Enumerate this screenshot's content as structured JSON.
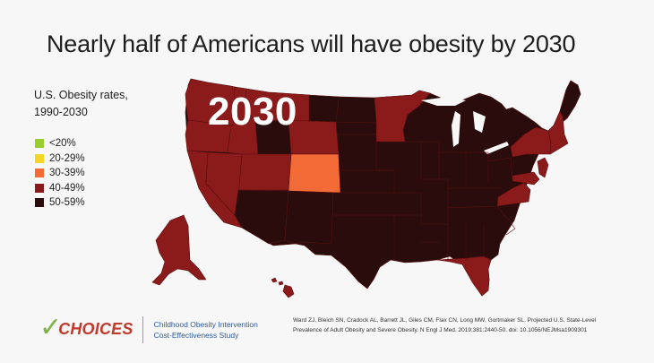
{
  "title": "Nearly half of Americans will have obesity by 2030",
  "subtitle_line1": "U.S. Obesity rates,",
  "subtitle_line2": "1990-2030",
  "year_label": "2030",
  "legend": [
    {
      "label": "<20%",
      "color": "#9acd32"
    },
    {
      "label": "20-29%",
      "color": "#f5d327"
    },
    {
      "label": "30-39%",
      "color": "#f26a35"
    },
    {
      "label": "40-49%",
      "color": "#8b1a1a"
    },
    {
      "label": "50-59%",
      "color": "#2a0c0c"
    }
  ],
  "logo": {
    "check": "✓",
    "word": "CHOICES",
    "tag_line1": "Childhood Obesity Intervention",
    "tag_line2": "Cost-Effectiveness Study"
  },
  "citation": {
    "line1": "Ward ZJ, Bleich SN, Cradock AL, Barrett JL, Giles CM, Flax CN, Long MW, Gortmaker SL. Projected U.S. State-Level",
    "line2": "Prevalence of Adult Obesity and Severe Obesity. N Engl J Med. 2019;381:2440-50. doi: 10.1056/NEJMsa1909301"
  },
  "colors": {
    "border": "#5a1010"
  }
}
